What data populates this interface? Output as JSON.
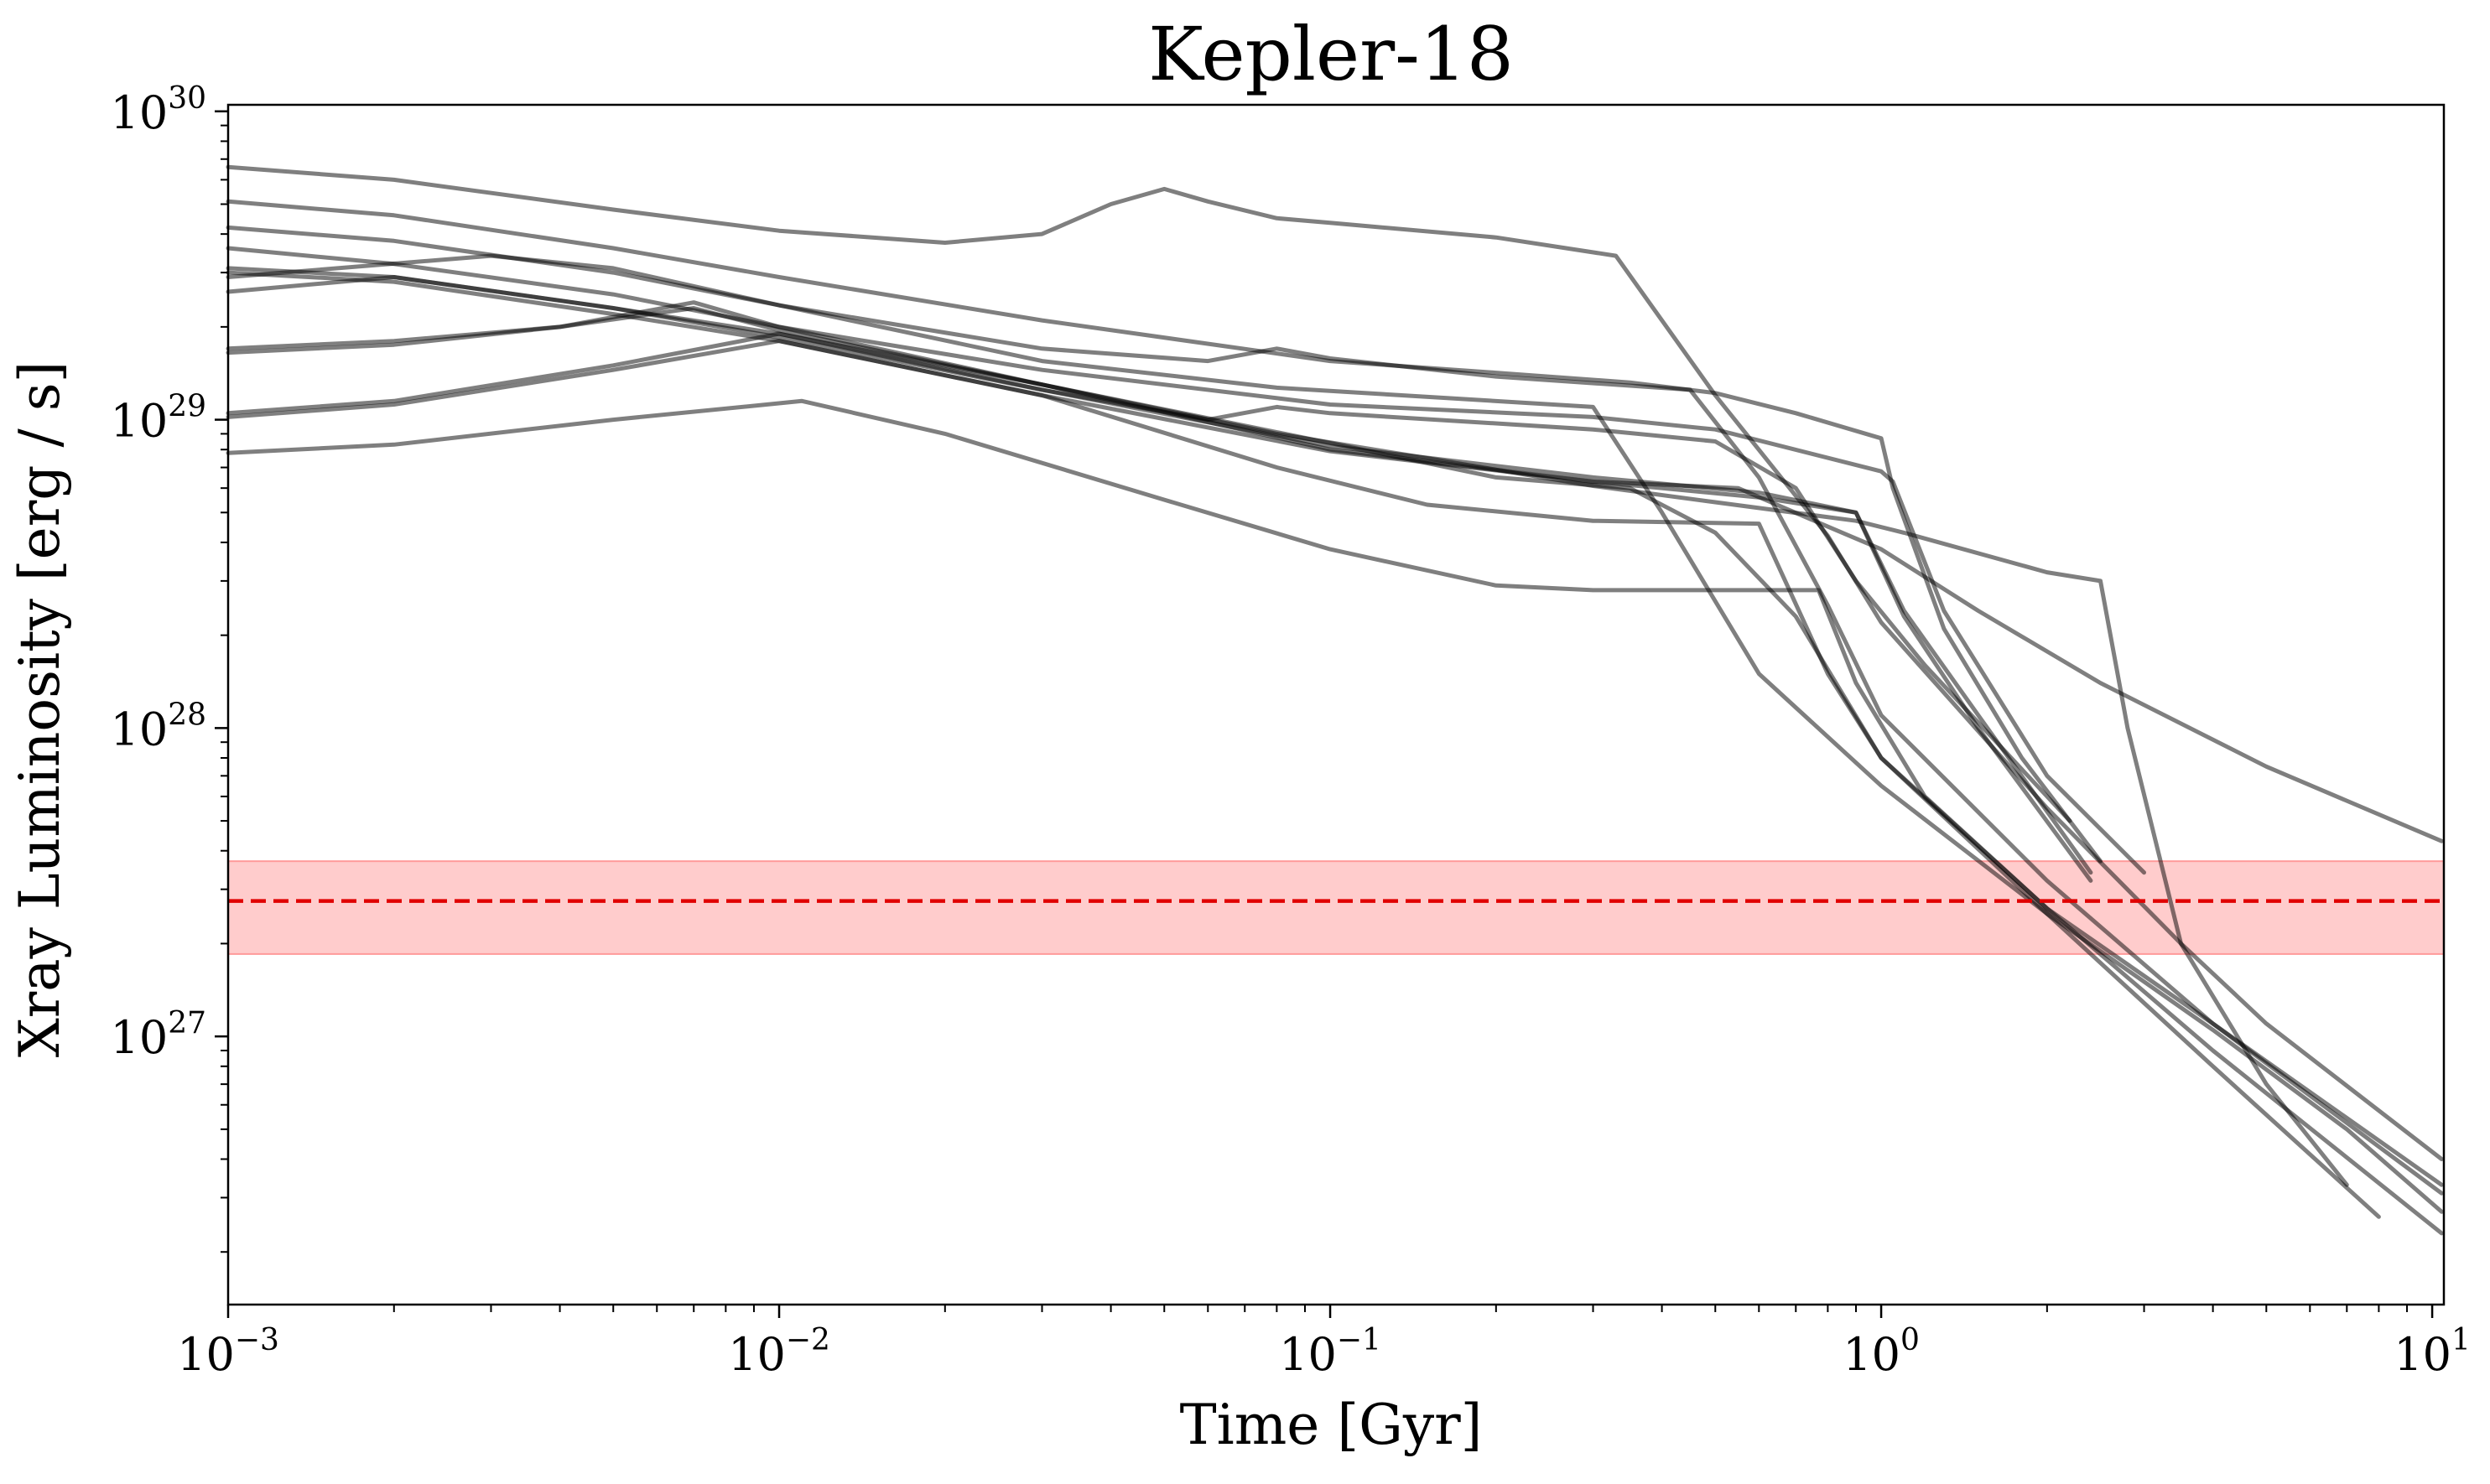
{
  "chart_data": {
    "type": "line",
    "title": "Kepler-18",
    "xlabel": "Time [Gyr]",
    "ylabel": "Xray Luminosity [erg / s]",
    "xscale": "log",
    "yscale": "log",
    "xlim": [
      0.001,
      10.5
    ],
    "ylim": [
      1.35e+26,
      1.05e+30
    ],
    "grid": false,
    "x_ticks": [
      {
        "value": 0.001,
        "base": "10",
        "exp": "−3"
      },
      {
        "value": 0.01,
        "base": "10",
        "exp": "−2"
      },
      {
        "value": 0.1,
        "base": "10",
        "exp": "−1"
      },
      {
        "value": 1,
        "base": "10",
        "exp": "0"
      },
      {
        "value": 10,
        "base": "10",
        "exp": "1"
      }
    ],
    "y_ticks": [
      {
        "value": 1e+27,
        "base": "10",
        "exp": "27"
      },
      {
        "value": 1e+28,
        "base": "10",
        "exp": "28"
      },
      {
        "value": 1e+29,
        "base": "10",
        "exp": "29"
      },
      {
        "value": 1e+30,
        "base": "10",
        "exp": "30"
      }
    ],
    "reference": {
      "value": 2.75e+27,
      "lower": 1.85e+27,
      "upper": 3.7e+27,
      "line_color": "#e00000",
      "band_color": "#ff9a9a"
    },
    "series_color": "#000000",
    "series": [
      {
        "points": [
          [
            0.001,
            6.6e+29
          ],
          [
            0.002,
            6e+29
          ],
          [
            0.005,
            4.8e+29
          ],
          [
            0.01,
            4.1e+29
          ],
          [
            0.02,
            3.75e+29
          ],
          [
            0.03,
            4e+29
          ],
          [
            0.04,
            5e+29
          ],
          [
            0.05,
            5.6e+29
          ],
          [
            0.06,
            5.1e+29
          ],
          [
            0.08,
            4.5e+29
          ],
          [
            0.1,
            4.35e+29
          ],
          [
            0.2,
            3.9e+29
          ],
          [
            0.33,
            3.4e+29
          ],
          [
            0.4,
            2.1e+29
          ],
          [
            0.5,
            1.2e+29
          ],
          [
            0.8,
            4.2e+28
          ],
          [
            1,
            2.2e+28
          ],
          [
            2,
            5.5e+27
          ],
          [
            3.5,
            2e+27
          ],
          [
            5,
            1.1e+27
          ],
          [
            10.4,
            4e+26
          ]
        ]
      },
      {
        "points": [
          [
            0.001,
            5.1e+29
          ],
          [
            0.002,
            4.6e+29
          ],
          [
            0.005,
            3.6e+29
          ],
          [
            0.01,
            2.9e+29
          ],
          [
            0.03,
            2.1e+29
          ],
          [
            0.1,
            1.55e+29
          ],
          [
            0.2,
            1.42e+29
          ],
          [
            0.35,
            1.32e+29
          ],
          [
            0.5,
            1.22e+29
          ],
          [
            0.7,
            1.05e+29
          ],
          [
            1,
            8.7e+28
          ],
          [
            1.05,
            6e+28
          ],
          [
            1.3,
            2.1e+28
          ],
          [
            1.8,
            8e+27
          ],
          [
            2.5,
            3.7e+27
          ]
        ]
      },
      {
        "points": [
          [
            0.001,
            4.2e+29
          ],
          [
            0.002,
            3.8e+29
          ],
          [
            0.005,
            3e+29
          ],
          [
            0.01,
            2.35e+29
          ],
          [
            0.03,
            1.7e+29
          ],
          [
            0.06,
            1.55e+29
          ],
          [
            0.08,
            1.7e+29
          ],
          [
            0.1,
            1.58e+29
          ],
          [
            0.2,
            1.38e+29
          ],
          [
            0.45,
            1.25e+29
          ],
          [
            0.6,
            6.5e+28
          ],
          [
            0.8,
            2.5e+28
          ],
          [
            1,
            1.1e+28
          ],
          [
            2,
            3.2e+27
          ],
          [
            4,
            1.1e+27
          ],
          [
            10.4,
            3.3e+26
          ]
        ]
      },
      {
        "points": [
          [
            0.001,
            3.6e+29
          ],
          [
            0.002,
            3.2e+29
          ],
          [
            0.005,
            2.55e+29
          ],
          [
            0.01,
            2e+29
          ],
          [
            0.03,
            1.45e+29
          ],
          [
            0.1,
            1.12e+29
          ],
          [
            0.3,
            1.02e+29
          ],
          [
            0.5,
            9.3e+28
          ],
          [
            1,
            6.8e+28
          ],
          [
            1.05,
            6.3e+28
          ],
          [
            1.3,
            2.4e+28
          ],
          [
            2,
            7e+27
          ],
          [
            3,
            3.4e+27
          ]
        ]
      },
      {
        "points": [
          [
            0.001,
            3.1e+29
          ],
          [
            0.002,
            2.9e+29
          ],
          [
            0.005,
            2.3e+29
          ],
          [
            0.01,
            1.85e+29
          ],
          [
            0.03,
            1.25e+29
          ],
          [
            0.1,
            8.2e+28
          ],
          [
            0.3,
            6.5e+28
          ],
          [
            0.6,
            5.8e+28
          ],
          [
            0.9,
            5e+28
          ],
          [
            1.1,
            2.4e+28
          ],
          [
            1.5,
            1.1e+28
          ],
          [
            2.4,
            3.4e+27
          ]
        ]
      },
      {
        "points": [
          [
            0.001,
            3e+29
          ],
          [
            0.002,
            2.8e+29
          ],
          [
            0.005,
            2.2e+29
          ],
          [
            0.01,
            1.8e+29
          ],
          [
            0.03,
            1.2e+29
          ],
          [
            0.1,
            7.9e+28
          ],
          [
            0.3,
            6.3e+28
          ],
          [
            0.6,
            5.6e+28
          ],
          [
            0.9,
            5e+28
          ],
          [
            1.1,
            2.3e+28
          ],
          [
            1.5,
            1e+28
          ],
          [
            2.4,
            3.2e+27
          ]
        ]
      },
      {
        "points": [
          [
            0.001,
            2.9e+29
          ],
          [
            0.003,
            3.4e+29
          ],
          [
            0.005,
            3.1e+29
          ],
          [
            0.01,
            2.35e+29
          ],
          [
            0.03,
            1.55e+29
          ],
          [
            0.08,
            1.27e+29
          ],
          [
            0.3,
            1.1e+29
          ],
          [
            0.4,
            5e+28
          ],
          [
            0.6,
            1.5e+28
          ],
          [
            1,
            6.5e+27
          ],
          [
            2,
            2.5e+27
          ],
          [
            4,
            1.05e+27
          ],
          [
            7,
            5e+26
          ],
          [
            10.4,
            2.7e+26
          ]
        ]
      },
      {
        "points": [
          [
            0.001,
            2.6e+29
          ],
          [
            0.002,
            2.9e+29
          ],
          [
            0.005,
            2.3e+29
          ],
          [
            0.01,
            1.9e+29
          ],
          [
            0.03,
            1.25e+29
          ],
          [
            0.06,
            1e+29
          ],
          [
            0.08,
            1.1e+29
          ],
          [
            0.1,
            1.05e+29
          ],
          [
            0.3,
            9.3e+28
          ],
          [
            0.5,
            8.5e+28
          ],
          [
            0.7,
            6e+28
          ],
          [
            0.9,
            3e+28
          ],
          [
            1.2,
            1.6e+28
          ],
          [
            2.2,
            5e+27
          ]
        ]
      },
      {
        "points": [
          [
            0.001,
            1.7e+29
          ],
          [
            0.002,
            1.8e+29
          ],
          [
            0.004,
            2e+29
          ],
          [
            0.007,
            2.4e+29
          ],
          [
            0.01,
            2e+29
          ],
          [
            0.03,
            1.3e+29
          ],
          [
            0.08,
            9e+28
          ],
          [
            0.15,
            7.5e+28
          ],
          [
            0.3,
            6.1e+28
          ],
          [
            0.5,
            5.4e+28
          ],
          [
            0.9,
            4.7e+28
          ],
          [
            1.1,
            4.3e+28
          ],
          [
            2,
            3.2e+28
          ],
          [
            2.5,
            3e+28
          ],
          [
            2.8,
            1e+28
          ],
          [
            3.5,
            2e+27
          ],
          [
            5,
            7e+26
          ],
          [
            7,
            3.3e+26
          ]
        ]
      },
      {
        "points": [
          [
            0.001,
            1.65e+29
          ],
          [
            0.002,
            1.75e+29
          ],
          [
            0.004,
            2e+29
          ],
          [
            0.007,
            2.3e+29
          ],
          [
            0.01,
            1.95e+29
          ],
          [
            0.03,
            1.3e+29
          ],
          [
            0.1,
            8.4e+28
          ],
          [
            0.2,
            6.5e+28
          ],
          [
            0.35,
            6e+28
          ],
          [
            0.5,
            4.3e+28
          ],
          [
            0.7,
            2.3e+28
          ],
          [
            1,
            8e+27
          ],
          [
            2,
            2.5e+27
          ],
          [
            4,
            8e+26
          ],
          [
            8,
            2.6e+26
          ]
        ]
      },
      {
        "points": [
          [
            0.001,
            1.05e+29
          ],
          [
            0.002,
            1.15e+29
          ],
          [
            0.005,
            1.5e+29
          ],
          [
            0.01,
            1.9e+29
          ],
          [
            0.03,
            1.3e+29
          ],
          [
            0.1,
            8e+28
          ],
          [
            0.3,
            6.3e+28
          ],
          [
            0.55,
            6e+28
          ],
          [
            0.8,
            4.5e+28
          ],
          [
            1,
            3.8e+28
          ],
          [
            1.5,
            2.4e+28
          ],
          [
            2.5,
            1.4e+28
          ],
          [
            5,
            7.5e+27
          ],
          [
            10.4,
            4.3e+27
          ]
        ]
      },
      {
        "points": [
          [
            0.001,
            1.02e+29
          ],
          [
            0.002,
            1.12e+29
          ],
          [
            0.005,
            1.45e+29
          ],
          [
            0.01,
            1.8e+29
          ],
          [
            0.03,
            1.2e+29
          ],
          [
            0.08,
            7e+28
          ],
          [
            0.15,
            5.3e+28
          ],
          [
            0.3,
            4.7e+28
          ],
          [
            0.6,
            4.6e+28
          ],
          [
            0.8,
            1.5e+28
          ],
          [
            1,
            8e+27
          ],
          [
            2,
            2.6e+27
          ],
          [
            4,
            9e+26
          ],
          [
            10.4,
            2.3e+26
          ]
        ]
      },
      {
        "points": [
          [
            0.001,
            7.8e+28
          ],
          [
            0.002,
            8.3e+28
          ],
          [
            0.005,
            1e+29
          ],
          [
            0.011,
            1.15e+29
          ],
          [
            0.02,
            9e+28
          ],
          [
            0.05,
            5.5e+28
          ],
          [
            0.1,
            3.8e+28
          ],
          [
            0.2,
            2.9e+28
          ],
          [
            0.3,
            2.8e+28
          ],
          [
            0.77,
            2.8e+28
          ],
          [
            0.9,
            1.4e+28
          ],
          [
            1.2,
            6e+27
          ],
          [
            2,
            2.6e+27
          ],
          [
            4,
            1.1e+27
          ],
          [
            10.4,
            3.1e+26
          ]
        ]
      }
    ]
  }
}
